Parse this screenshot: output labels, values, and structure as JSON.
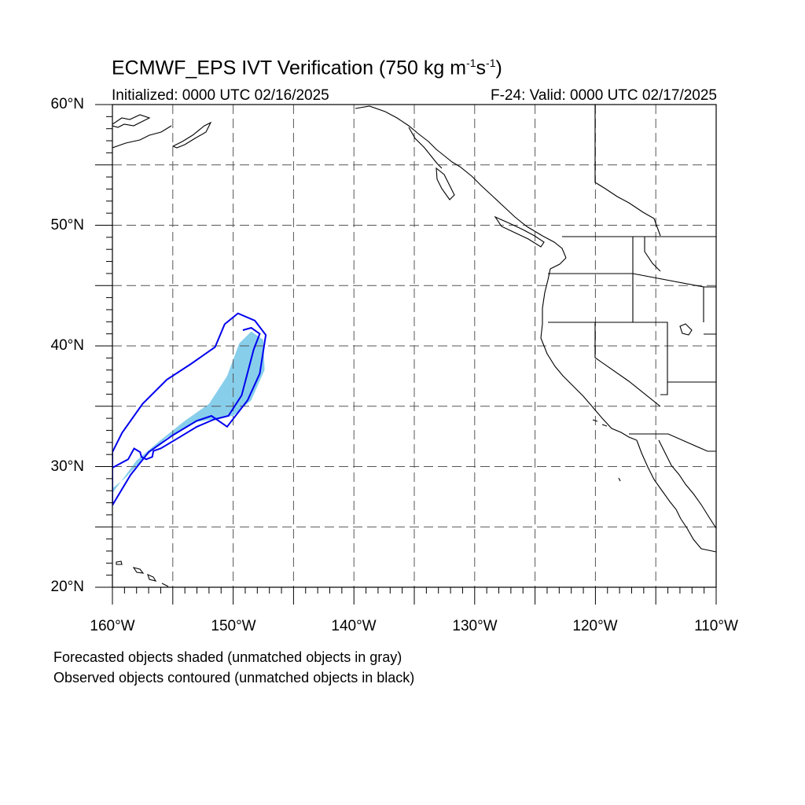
{
  "title": {
    "main": "ECMWF_EPS IVT Verification (750 kg m",
    "sup1": "-1",
    "mid": "s",
    "sup2": "-1",
    "end": ")"
  },
  "subtitle_left": "Initialized: 0000 UTC 02/16/2025",
  "subtitle_right": "F-24: Valid: 0000 UTC 02/17/2025",
  "lat_labels": [
    "60°N",
    "50°N",
    "40°N",
    "30°N",
    "20°N"
  ],
  "lon_labels": [
    "160°W",
    "150°W",
    "140°W",
    "130°W",
    "120°W",
    "110°W"
  ],
  "footnotes": [
    "Forecasted objects shaded (unmatched objects in gray)",
    "Observed objects contoured (unmatched objects in black)"
  ],
  "map": {
    "lon_range": [
      -160,
      -110
    ],
    "lat_range": [
      20,
      60
    ],
    "grid_step_deg": 5,
    "gridlines": "dashed",
    "coastlines": "black",
    "political_boundaries": "US states, Canada, Mexico"
  },
  "colors": {
    "forecast_fill": "#87ceeb",
    "observed_contour": "#0000ee",
    "coast": "#000000",
    "grid": "#555555"
  },
  "objects": {
    "forecast_shaded": {
      "matched": true,
      "color_name": "sky blue",
      "polygon_lonlat": [
        [
          -160,
          27.8
        ],
        [
          -158,
          30.5
        ],
        [
          -156,
          32.2
        ],
        [
          -154,
          33.8
        ],
        [
          -152,
          35.2
        ],
        [
          -150.5,
          37.5
        ],
        [
          -149.5,
          40.2
        ],
        [
          -148.5,
          41.2
        ],
        [
          -147.5,
          40.5
        ],
        [
          -147.4,
          38
        ],
        [
          -148.5,
          35.5
        ],
        [
          -150,
          34.2
        ],
        [
          -153,
          33.7
        ],
        [
          -155.5,
          32.4
        ],
        [
          -157.5,
          30.6
        ],
        [
          -159,
          29
        ],
        [
          -160,
          28.2
        ]
      ]
    },
    "observed_contour_outer": {
      "matched": true,
      "color_name": "blue",
      "polygon_lonlat": [
        [
          -160,
          26.8
        ],
        [
          -158.5,
          29.3
        ],
        [
          -157,
          31.2
        ],
        [
          -155,
          32.6
        ],
        [
          -153,
          33.8
        ],
        [
          -151.8,
          34.2
        ],
        [
          -150.5,
          33.3
        ],
        [
          -148.8,
          35.5
        ],
        [
          -147.8,
          37.7
        ],
        [
          -147.3,
          40.9
        ],
        [
          -148.2,
          42.1
        ],
        [
          -149.6,
          42.7
        ],
        [
          -150.7,
          41.8
        ],
        [
          -151.5,
          39.9
        ],
        [
          -153.5,
          38.5
        ],
        [
          -155.5,
          37.2
        ],
        [
          -157.5,
          35.2
        ],
        [
          -159.2,
          32.8
        ],
        [
          -160,
          31.2
        ]
      ]
    },
    "observed_contour_inner": {
      "matched": true,
      "color_name": "blue",
      "polyline_lonlat": [
        [
          -160,
          29.9
        ],
        [
          -158.7,
          30.6
        ],
        [
          -158.2,
          31.5
        ],
        [
          -157.7,
          31.2
        ],
        [
          -157.6,
          30.8
        ],
        [
          -157.2,
          30.6
        ],
        [
          -156.7,
          30.8
        ],
        [
          -156.6,
          31.3
        ],
        [
          -156,
          31.5
        ],
        [
          -154.5,
          32.4
        ],
        [
          -153,
          33.3
        ],
        [
          -151.6,
          33.9
        ],
        [
          -150.4,
          34.2
        ],
        [
          -149.3,
          35.9
        ],
        [
          -148.3,
          39.7
        ],
        [
          -147.8,
          41
        ],
        [
          -148.5,
          41.5
        ],
        [
          -149.2,
          41.3
        ]
      ]
    }
  }
}
